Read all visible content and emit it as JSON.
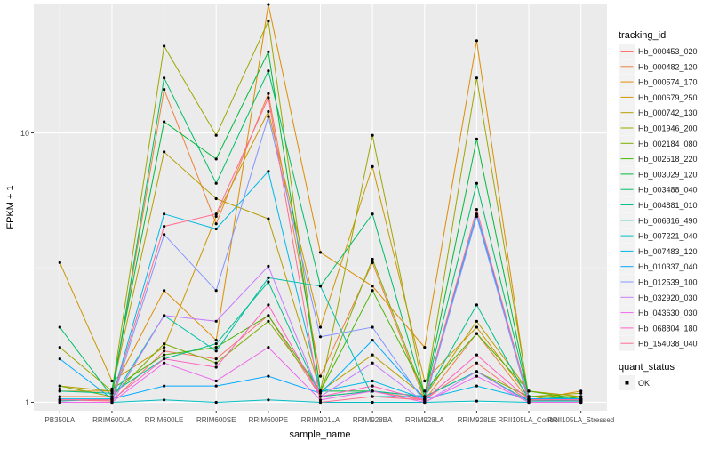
{
  "chart_data": {
    "type": "line",
    "xlabel": "sample_name",
    "ylabel": "FPKM + 1",
    "y_scale": "log10",
    "ylim": [
      0.93,
      30
    ],
    "y_ticks": [
      {
        "value": 1,
        "label": "1"
      },
      {
        "value": 10,
        "label": "10"
      }
    ],
    "categories": [
      "PB350LA",
      "RRIM600LA",
      "RRIM600LE",
      "RRIM600SE",
      "RRIM600PE",
      "RRIM901LA",
      "RRIM928BA",
      "RRIM928LA",
      "RRIM928LE",
      "RRII105LA_Control",
      "RRII105LA_Stressed"
    ],
    "legend": {
      "position": "right",
      "title": "tracking_id",
      "quant_title": "quant_status",
      "quant_label": "OK"
    },
    "series": [
      {
        "name": "Hb_000453_020",
        "color": "#F8766D",
        "values": [
          1.02,
          1.01,
          1.55,
          1.45,
          2.1,
          1.05,
          1.1,
          1.02,
          1.4,
          1.01,
          1.02
        ]
      },
      {
        "name": "Hb_000482_120",
        "color": "#EC823C",
        "values": [
          1.05,
          1.05,
          14.5,
          4.6,
          14.0,
          1.25,
          3.3,
          1.02,
          1.8,
          1.02,
          1.02
        ]
      },
      {
        "name": "Hb_000574_170",
        "color": "#DD8D00",
        "values": [
          1.1,
          1.1,
          2.6,
          1.7,
          30.0,
          3.6,
          2.7,
          1.6,
          22.0,
          1.02,
          1.1
        ]
      },
      {
        "name": "Hb_000679_250",
        "color": "#CB9600",
        "values": [
          3.3,
          1.2,
          1.6,
          4.9,
          12.0,
          1.9,
          7.5,
          1.2,
          1.9,
          1.05,
          1.05
        ]
      },
      {
        "name": "Hb_000742_130",
        "color": "#B69E00",
        "values": [
          1.15,
          1.1,
          8.5,
          5.7,
          4.8,
          1.1,
          1.5,
          1.05,
          2.0,
          1.1,
          1.05
        ]
      },
      {
        "name": "Hb_001946_200",
        "color": "#9DA700",
        "values": [
          1.6,
          1.1,
          21.0,
          9.8,
          26.0,
          1.1,
          9.8,
          1.05,
          16.0,
          1.05,
          1.08
        ]
      },
      {
        "name": "Hb_002184_080",
        "color": "#7CAE00",
        "values": [
          1.15,
          1.05,
          1.65,
          1.4,
          2.0,
          1.1,
          3.4,
          1.05,
          1.3,
          1.05,
          1.05
        ]
      },
      {
        "name": "Hb_002518_220",
        "color": "#48B500",
        "values": [
          1.12,
          1.12,
          1.5,
          1.6,
          2.1,
          1.1,
          2.6,
          1.1,
          1.8,
          1.1,
          1.03
        ]
      },
      {
        "name": "Hb_003029_120",
        "color": "#00BA38",
        "values": [
          1.12,
          1.12,
          11.0,
          8.0,
          20.0,
          1.1,
          1.1,
          1.05,
          9.5,
          1.05,
          1.03
        ]
      },
      {
        "name": "Hb_003488_040",
        "color": "#00BD67",
        "values": [
          1.9,
          1.05,
          16.0,
          6.5,
          17.0,
          2.7,
          5.0,
          1.05,
          6.5,
          1.05,
          1.03
        ]
      },
      {
        "name": "Hb_004881_010",
        "color": "#00BF8B",
        "values": [
          1.1,
          1.08,
          1.45,
          1.65,
          2.8,
          1.05,
          1.1,
          1.05,
          2.3,
          1.02,
          1.01
        ]
      },
      {
        "name": "Hb_006816_490",
        "color": "#00C0AA",
        "values": [
          1.01,
          1.03,
          2.1,
          1.55,
          2.9,
          2.7,
          1.05,
          1.05,
          1.3,
          1.01,
          1.01
        ]
      },
      {
        "name": "Hb_007221_040",
        "color": "#00BFC4",
        "values": [
          1.0,
          1.0,
          1.02,
          1.0,
          1.02,
          1.0,
          1.0,
          1.0,
          1.01,
          1.0,
          1.0
        ]
      },
      {
        "name": "Hb_007483_120",
        "color": "#00B8E7",
        "values": [
          1.03,
          1.03,
          5.0,
          4.4,
          7.2,
          1.1,
          1.2,
          1.03,
          1.15,
          1.03,
          1.03
        ]
      },
      {
        "name": "Hb_010337_040",
        "color": "#00A9FF",
        "values": [
          1.45,
          1.03,
          1.15,
          1.15,
          1.25,
          1.08,
          1.7,
          1.03,
          5.0,
          1.03,
          1.03
        ]
      },
      {
        "name": "Hb_012539_100",
        "color": "#8494FF",
        "values": [
          1.0,
          1.0,
          4.2,
          2.6,
          11.5,
          1.75,
          1.9,
          1.0,
          4.9,
          1.0,
          1.0
        ]
      },
      {
        "name": "Hb_032920_030",
        "color": "#C77CFF",
        "values": [
          1.0,
          1.0,
          2.1,
          2.0,
          3.2,
          1.05,
          1.4,
          1.0,
          1.3,
          1.0,
          1.0
        ]
      },
      {
        "name": "Hb_043630_030",
        "color": "#ED68ED",
        "values": [
          1.0,
          1.0,
          1.4,
          1.2,
          1.6,
          1.02,
          1.1,
          1.0,
          1.25,
          1.0,
          1.0
        ]
      },
      {
        "name": "Hb_068804_180",
        "color": "#FF61C3",
        "values": [
          1.02,
          1.02,
          1.45,
          1.35,
          2.3,
          1.05,
          1.15,
          1.02,
          1.5,
          1.02,
          1.02
        ]
      },
      {
        "name": "Hb_154038_040",
        "color": "#FF6C91",
        "values": [
          1.02,
          1.02,
          4.5,
          5.0,
          13.5,
          1.0,
          1.05,
          1.02,
          5.2,
          1.02,
          1.02
        ]
      }
    ]
  }
}
